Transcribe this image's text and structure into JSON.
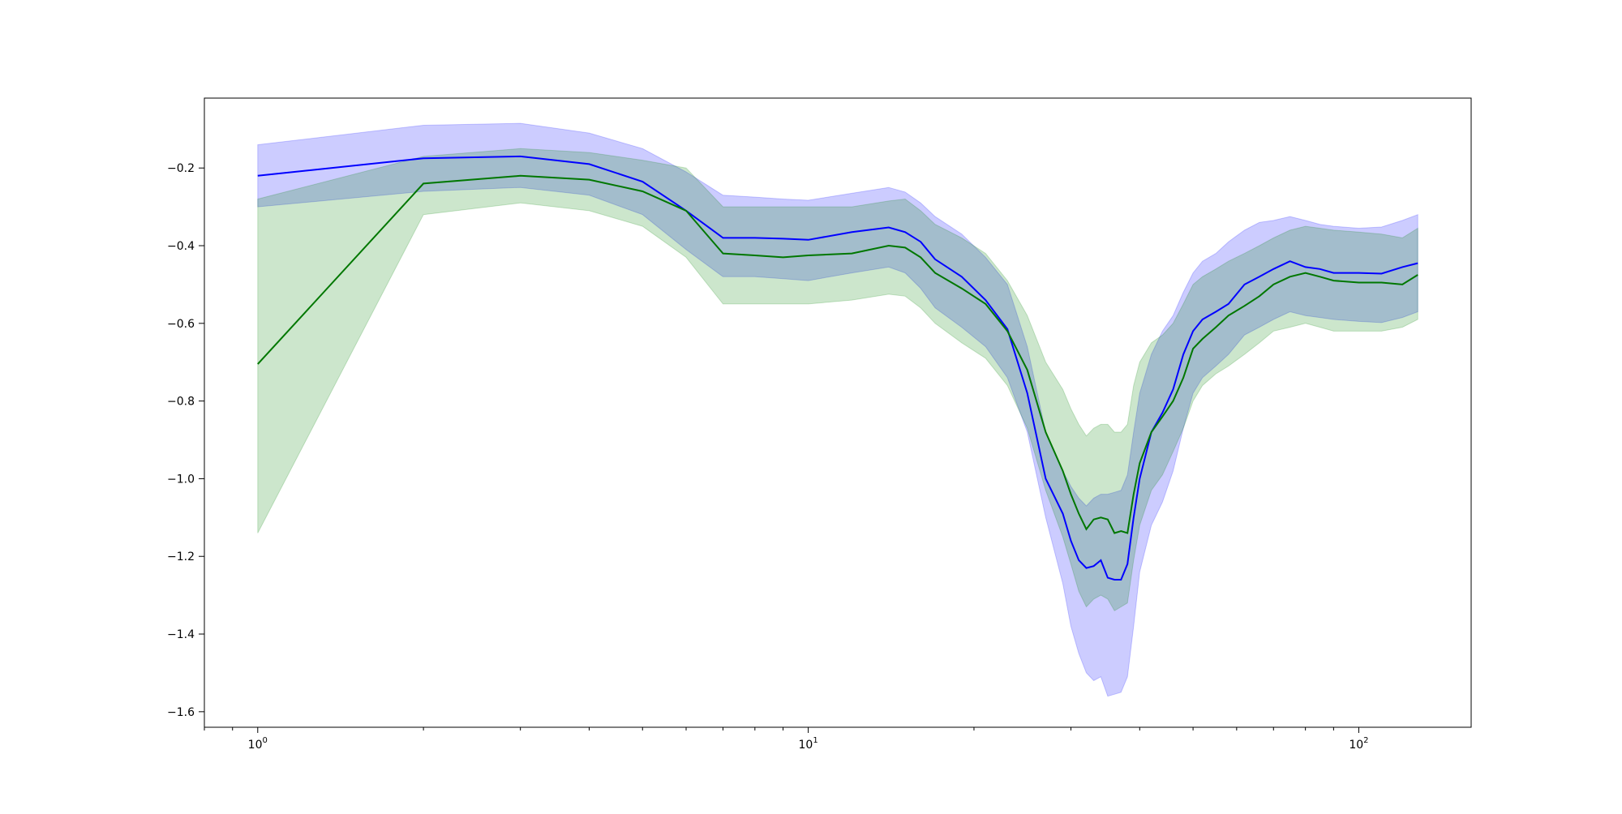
{
  "chart_data": {
    "type": "line",
    "title": "",
    "xlabel": "",
    "ylabel": "",
    "xscale": "log",
    "xlim": [
      0.8,
      160
    ],
    "ylim": [
      -1.64,
      -0.02
    ],
    "grid": false,
    "legend": "none",
    "x_ticks": [
      {
        "value": 1,
        "base": "10",
        "exp": "0"
      },
      {
        "value": 10,
        "base": "10",
        "exp": "1"
      },
      {
        "value": 100,
        "base": "10",
        "exp": "2"
      }
    ],
    "y_ticks": [
      {
        "value": -0.2,
        "label": "−0.2"
      },
      {
        "value": -0.4,
        "label": "−0.4"
      },
      {
        "value": -0.6,
        "label": "−0.6"
      },
      {
        "value": -0.8,
        "label": "−0.8"
      },
      {
        "value": -1.0,
        "label": "−1.0"
      },
      {
        "value": -1.2,
        "label": "−1.2"
      },
      {
        "value": -1.4,
        "label": "−1.4"
      },
      {
        "value": -1.6,
        "label": "−1.6"
      }
    ],
    "x": [
      1,
      2,
      3,
      4,
      5,
      6,
      7,
      8,
      9,
      10,
      12,
      14,
      15,
      16,
      17,
      19,
      21,
      23,
      25,
      27,
      29,
      30,
      31,
      32,
      33,
      34,
      35,
      36,
      37,
      38,
      39,
      40,
      42,
      44,
      46,
      48,
      50,
      52,
      55,
      58,
      62,
      66,
      70,
      75,
      80,
      85,
      90,
      100,
      110,
      120,
      128
    ],
    "series": [
      {
        "color": "#0000ff",
        "band_color": "#0000ff",
        "mean": [
          -0.22,
          -0.175,
          -0.17,
          -0.19,
          -0.235,
          -0.31,
          -0.38,
          -0.38,
          -0.382,
          -0.385,
          -0.365,
          -0.353,
          -0.365,
          -0.39,
          -0.435,
          -0.48,
          -0.54,
          -0.615,
          -0.78,
          -1.0,
          -1.09,
          -1.16,
          -1.21,
          -1.23,
          -1.225,
          -1.21,
          -1.255,
          -1.26,
          -1.26,
          -1.22,
          -1.1,
          -1.0,
          -0.88,
          -0.83,
          -0.77,
          -0.68,
          -0.62,
          -0.59,
          -0.57,
          -0.55,
          -0.5,
          -0.48,
          -0.46,
          -0.44,
          -0.455,
          -0.46,
          -0.47,
          -0.47,
          -0.472,
          -0.455,
          -0.445
        ],
        "lower": [
          -0.3,
          -0.26,
          -0.25,
          -0.27,
          -0.32,
          -0.41,
          -0.48,
          -0.48,
          -0.485,
          -0.49,
          -0.47,
          -0.455,
          -0.47,
          -0.51,
          -0.56,
          -0.61,
          -0.66,
          -0.74,
          -0.88,
          -1.1,
          -1.27,
          -1.38,
          -1.45,
          -1.5,
          -1.52,
          -1.51,
          -1.56,
          -1.555,
          -1.55,
          -1.51,
          -1.38,
          -1.24,
          -1.12,
          -1.06,
          -0.98,
          -0.87,
          -0.78,
          -0.74,
          -0.71,
          -0.68,
          -0.63,
          -0.61,
          -0.59,
          -0.57,
          -0.58,
          -0.585,
          -0.59,
          -0.595,
          -0.598,
          -0.585,
          -0.57
        ],
        "upper": [
          -0.14,
          -0.09,
          -0.085,
          -0.11,
          -0.15,
          -0.21,
          -0.27,
          -0.275,
          -0.28,
          -0.283,
          -0.265,
          -0.25,
          -0.262,
          -0.29,
          -0.325,
          -0.37,
          -0.43,
          -0.5,
          -0.66,
          -0.88,
          -0.98,
          -1.02,
          -1.05,
          -1.07,
          -1.05,
          -1.04,
          -1.04,
          -1.035,
          -1.03,
          -0.99,
          -0.88,
          -0.78,
          -0.68,
          -0.62,
          -0.58,
          -0.52,
          -0.47,
          -0.44,
          -0.42,
          -0.39,
          -0.36,
          -0.34,
          -0.335,
          -0.325,
          -0.335,
          -0.345,
          -0.35,
          -0.355,
          -0.352,
          -0.335,
          -0.32
        ]
      },
      {
        "color": "#007700",
        "band_color": "#008000",
        "mean": [
          -0.705,
          -0.24,
          -0.22,
          -0.23,
          -0.26,
          -0.31,
          -0.42,
          -0.425,
          -0.43,
          -0.425,
          -0.42,
          -0.4,
          -0.405,
          -0.43,
          -0.47,
          -0.51,
          -0.55,
          -0.62,
          -0.72,
          -0.88,
          -0.98,
          -1.04,
          -1.09,
          -1.13,
          -1.105,
          -1.1,
          -1.105,
          -1.14,
          -1.135,
          -1.14,
          -1.04,
          -0.96,
          -0.88,
          -0.84,
          -0.8,
          -0.74,
          -0.665,
          -0.64,
          -0.61,
          -0.58,
          -0.555,
          -0.53,
          -0.5,
          -0.48,
          -0.47,
          -0.48,
          -0.49,
          -0.495,
          -0.495,
          -0.5,
          -0.475
        ],
        "lower": [
          -1.14,
          -0.32,
          -0.29,
          -0.31,
          -0.35,
          -0.43,
          -0.55,
          -0.55,
          -0.55,
          -0.55,
          -0.54,
          -0.525,
          -0.53,
          -0.56,
          -0.6,
          -0.65,
          -0.69,
          -0.76,
          -0.87,
          -1.03,
          -1.15,
          -1.22,
          -1.29,
          -1.33,
          -1.31,
          -1.3,
          -1.31,
          -1.34,
          -1.33,
          -1.32,
          -1.21,
          -1.12,
          -1.03,
          -0.99,
          -0.93,
          -0.87,
          -0.8,
          -0.76,
          -0.73,
          -0.71,
          -0.68,
          -0.65,
          -0.62,
          -0.61,
          -0.6,
          -0.61,
          -0.62,
          -0.62,
          -0.62,
          -0.61,
          -0.59
        ],
        "upper": [
          -0.28,
          -0.17,
          -0.15,
          -0.16,
          -0.18,
          -0.2,
          -0.3,
          -0.3,
          -0.3,
          -0.3,
          -0.3,
          -0.285,
          -0.28,
          -0.31,
          -0.345,
          -0.38,
          -0.42,
          -0.49,
          -0.58,
          -0.7,
          -0.77,
          -0.82,
          -0.86,
          -0.89,
          -0.87,
          -0.86,
          -0.86,
          -0.88,
          -0.88,
          -0.86,
          -0.76,
          -0.7,
          -0.65,
          -0.63,
          -0.6,
          -0.55,
          -0.5,
          -0.48,
          -0.46,
          -0.44,
          -0.42,
          -0.4,
          -0.38,
          -0.36,
          -0.35,
          -0.355,
          -0.36,
          -0.365,
          -0.37,
          -0.38,
          -0.355
        ]
      }
    ]
  }
}
